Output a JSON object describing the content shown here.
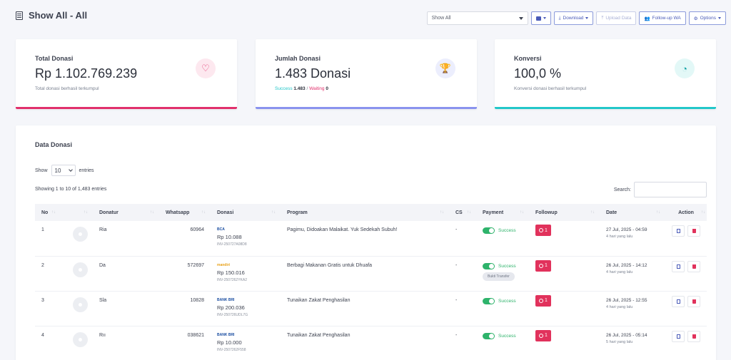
{
  "header": {
    "title": "Show All - All"
  },
  "toolbar": {
    "filter_value": "Show All",
    "download_label": "Download",
    "upload_label": "Upload Data",
    "followup_label": "Follow-up WA",
    "options_label": "Options"
  },
  "cards": [
    {
      "label": "Total Donasi",
      "value": "Rp 1.102.769.239",
      "sub": "Total donasi berhasil terkumpul",
      "icon": "heart-icon",
      "color": "#e1306c"
    },
    {
      "label": "Jumlah Donasi",
      "value": "1.483 Donasi",
      "success_label": "Success",
      "success_count": "1.483",
      "sep": " / ",
      "waiting_label": "Waiting",
      "waiting_count": "0",
      "icon": "trophy-icon",
      "color": "#8a93ee"
    },
    {
      "label": "Konversi",
      "value": "100,0 %",
      "sub": "Konversi donasi berhasil terkumpul",
      "icon": "chart-pie-icon",
      "color": "#22c7c9"
    }
  ],
  "table": {
    "title": "Data Donasi",
    "show_label": "Show",
    "page_length": "10",
    "entries_label": "entries",
    "info": "Showing 1 to 10 of 1,483 entries",
    "search_label": "Search:",
    "search_value": "",
    "columns": [
      "No",
      "",
      "Donatur",
      "Whatsapp",
      "Donasi",
      "Program",
      "CS",
      "Payment",
      "Followup",
      "Date",
      "Action"
    ],
    "rows": [
      {
        "no": "1",
        "name": "Ria",
        "whatsapp": " 60964",
        "bank": "BCA",
        "amount": "Rp 10.088",
        "invoice": "INV-250727A08D8",
        "program": "Pagimu, Didoakan Malaikat. Yuk Sedekah Subuh!",
        "cs": "-",
        "payment": "Success",
        "proof": "",
        "followup": "1",
        "date": "27 Jul, 2025 - 04:59",
        "ago": "4 hari yang lalu"
      },
      {
        "no": "2",
        "name": "Da",
        "whatsapp": "572697",
        "bank": "mandiri",
        "amount": "Rp 150.016",
        "invoice": "INV-2507262YKA2",
        "program": "Berbagi Makanan Gratis untuk Dhuafa",
        "cs": "-",
        "payment": "Success",
        "proof": "Bukti Transfer",
        "followup": "1",
        "date": "26 Jul, 2025 - 14:12",
        "ago": "4 hari yang lalu"
      },
      {
        "no": "3",
        "name": "Sla",
        "whatsapp": " 10828",
        "bank": "BANK BRI",
        "amount": "Rp 200.036",
        "invoice": "INV-250726UDL7G",
        "program": "Tunaikan Zakat Penghasilan",
        "cs": "-",
        "payment": "Success",
        "proof": "",
        "followup": "1",
        "date": "26 Jul, 2025 - 12:55",
        "ago": "4 hari yang lalu"
      },
      {
        "no": "4",
        "name": "Rıı",
        "whatsapp": "038621",
        "bank": "BANK BRI",
        "amount": "Rp 10.000",
        "invoice": "INV-2507262F558",
        "program": "Tunaikan Zakat Penghasilan",
        "cs": "-",
        "payment": "Success",
        "proof": "",
        "followup": "1",
        "date": "26 Jul, 2025 - 05:14",
        "ago": "5 hari yang lalu"
      }
    ]
  }
}
